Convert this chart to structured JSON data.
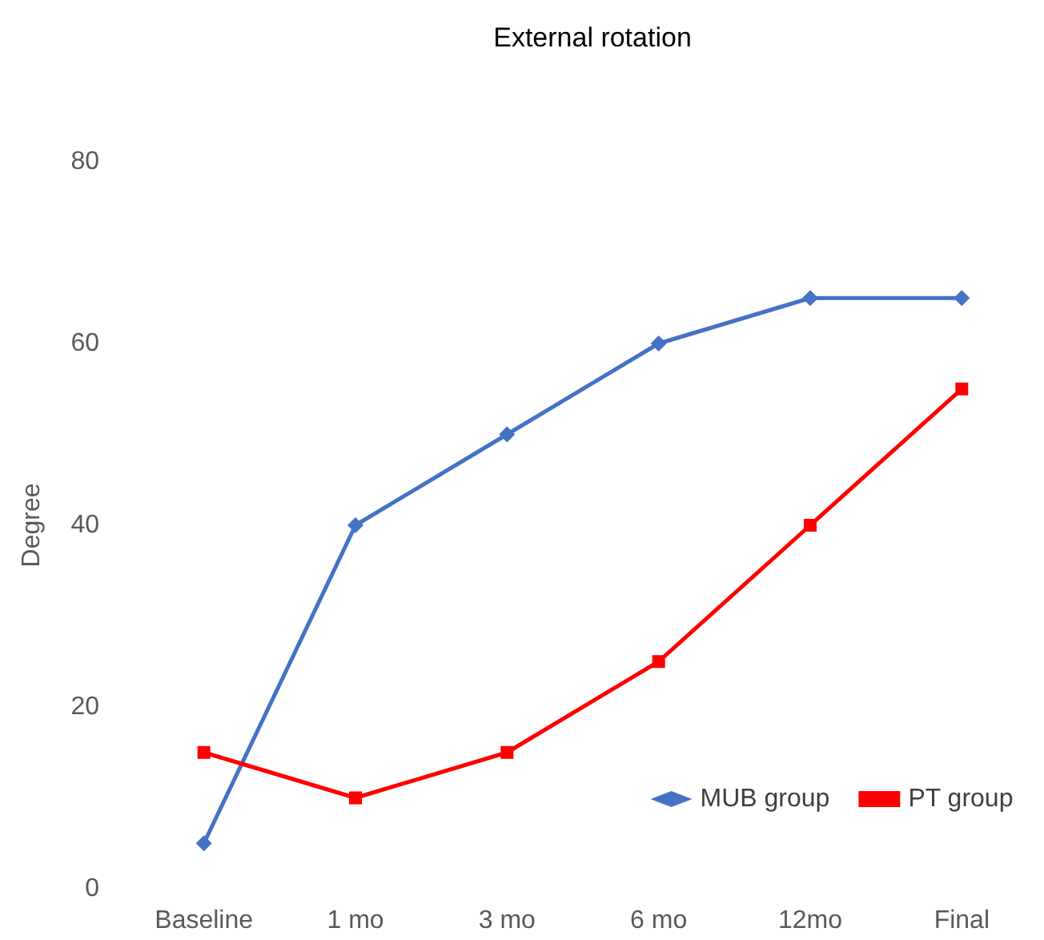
{
  "chart_data": {
    "type": "line",
    "title": "External rotation",
    "ylabel": "Degree",
    "categories": [
      "Baseline",
      "1 mo",
      "3 mo",
      "6 mo",
      "12mo",
      "Final"
    ],
    "series": [
      {
        "name": "MUB group",
        "color": "#4472c4",
        "marker": "diamond",
        "values": [
          5,
          40,
          50,
          60,
          65,
          65
        ]
      },
      {
        "name": "PT group",
        "color": "#ff0000",
        "marker": "square",
        "values": [
          15,
          10,
          15,
          25,
          40,
          55
        ]
      }
    ],
    "ylim": [
      0,
      80
    ],
    "yticks": [
      0,
      20,
      40,
      60,
      80
    ],
    "grid": false,
    "legend": "bottom right"
  }
}
